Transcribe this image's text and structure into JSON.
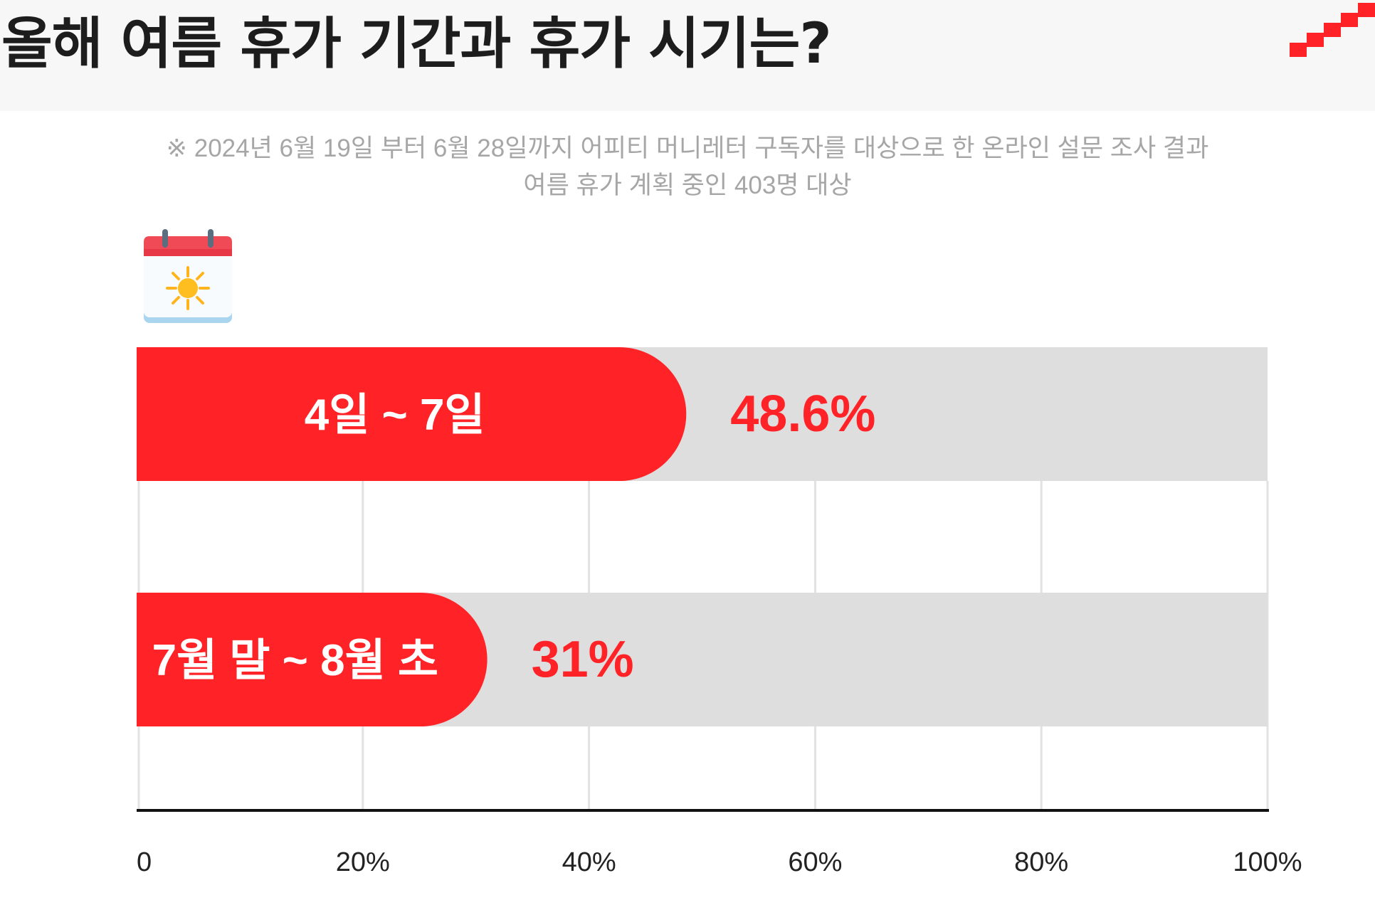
{
  "header": {
    "title": "올해 여름 휴가 기간과 휴가 시기는?",
    "accent_color": "#ff2226",
    "background_color": "#f7f7f7",
    "logo_icon": "stairs-logo-icon"
  },
  "note": {
    "line1": "※ 2024년 6월 19일 부터 6월 28일까지 어피티 머니레터 구독자를 대상으로 한 온라인 설문 조사 결과",
    "line2": "여름 휴가 계획 중인 403명 대상"
  },
  "decoration": {
    "icon": "summer-calendar-icon"
  },
  "chart_data": {
    "type": "bar",
    "orientation": "horizontal",
    "title": "",
    "categories": [
      "4일 ~ 7일",
      "7월 말 ~ 8월 초"
    ],
    "values": [
      48.6,
      31
    ],
    "value_labels": [
      "48.6%",
      "31%"
    ],
    "xlim": [
      0,
      100
    ],
    "x_tick_values": [
      0,
      20,
      40,
      60,
      80,
      100
    ],
    "x_tick_labels": [
      "0",
      "20%",
      "40%",
      "60%",
      "80%",
      "100%"
    ],
    "grid": true,
    "legend": "none",
    "bar_color": "#ff2226",
    "track_color": "#dedede",
    "label_text_color": "#ffffff",
    "value_text_color": "#ff2226"
  }
}
